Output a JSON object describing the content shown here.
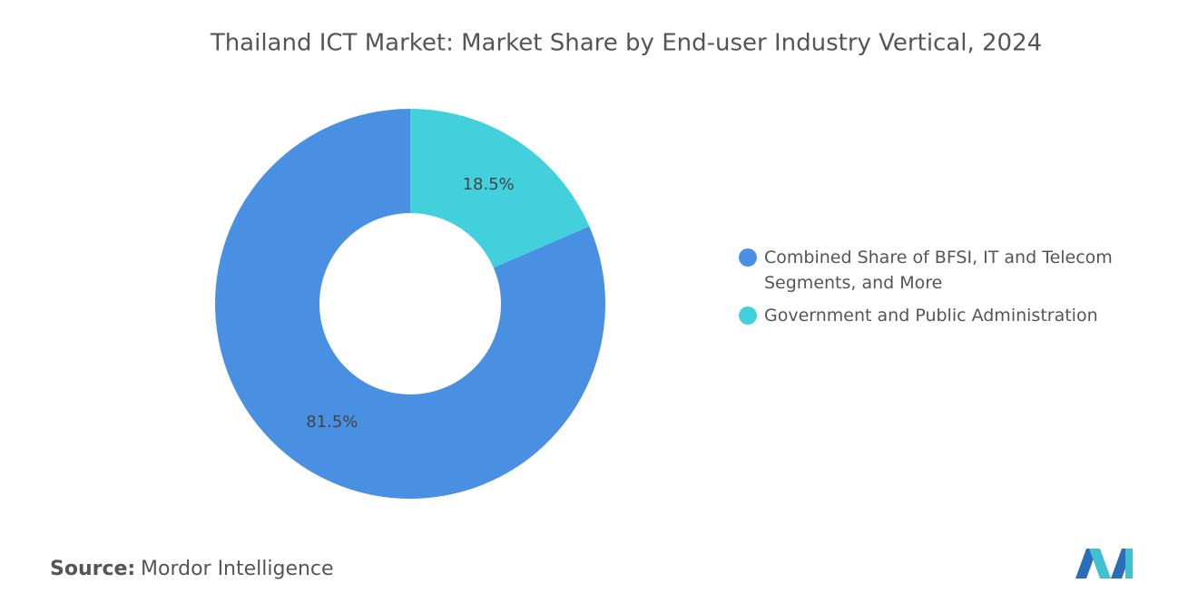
{
  "chart_data": {
    "type": "donut",
    "title": "Thailand ICT Market: Market Share by End-user Industry Vertical, 2024",
    "categories": [
      "Combined Share of BFSI, IT and Telecom Segments, and More",
      "Government and Public Administration"
    ],
    "values": [
      81.5,
      18.5
    ],
    "value_labels": [
      "81.5%",
      "18.5%"
    ],
    "colors": [
      "#4a90e2",
      "#41d0dc"
    ],
    "source_label": "Source:",
    "source": "Mordor Intelligence"
  }
}
